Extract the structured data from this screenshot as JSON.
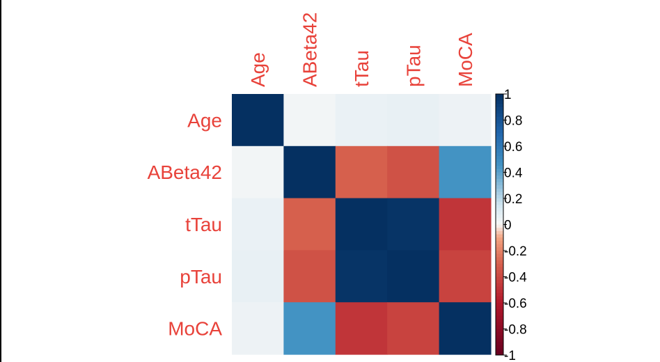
{
  "chart_data": {
    "type": "heatmap",
    "title": "",
    "row_labels": [
      "Age",
      "ABeta42",
      "tTau",
      "pTau",
      "MoCA"
    ],
    "col_labels": [
      "Age",
      "ABeta42",
      "tTau",
      "pTau",
      "MoCA"
    ],
    "values": [
      [
        1.0,
        0.02,
        0.05,
        0.06,
        0.04
      ],
      [
        0.02,
        1.0,
        -0.3,
        -0.36,
        0.45
      ],
      [
        0.05,
        -0.3,
        1.0,
        0.98,
        -0.48
      ],
      [
        0.06,
        -0.36,
        0.98,
        1.0,
        -0.42
      ],
      [
        0.04,
        0.45,
        -0.48,
        -0.42,
        1.0
      ]
    ],
    "colorbar": {
      "range": [
        -1,
        1
      ],
      "ticks": [
        1,
        0.8,
        0.6,
        0.4,
        0.2,
        0,
        -0.2,
        -0.4,
        -0.6,
        -0.8,
        -1
      ],
      "tick_labels": [
        "1",
        "0.8",
        "0.6",
        "0.4",
        "0.2",
        "0",
        "-0.2",
        "-0.4",
        "-0.6",
        "-0.8",
        "-1"
      ]
    },
    "label_color": "#e8423a",
    "colormap": {
      "negative_end": "#67001f",
      "mid_low": "#d6604d",
      "zero": "#f7f7f7",
      "mid_high": "#4393c3",
      "positive_end": "#053061"
    }
  }
}
